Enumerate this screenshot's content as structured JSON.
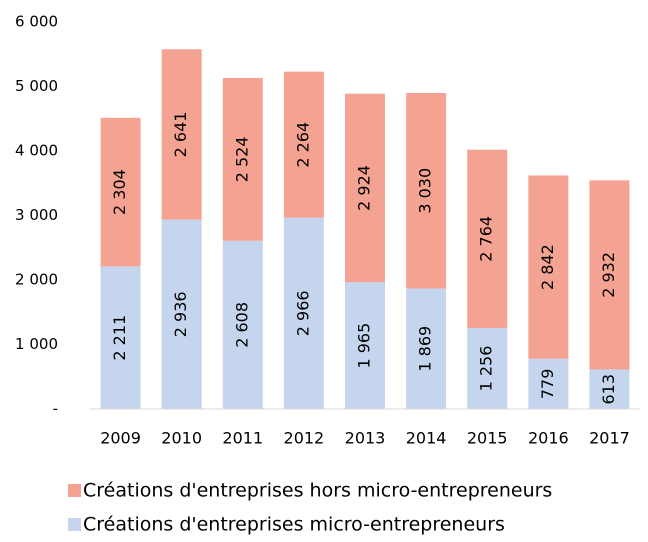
{
  "chart_data": {
    "type": "stacked_bar",
    "categories": [
      "2009",
      "2010",
      "2011",
      "2012",
      "2013",
      "2014",
      "2015",
      "2016",
      "2017"
    ],
    "series": [
      {
        "name": "Créations d'entreprises micro-entrepreneurs",
        "color": "#c5d5ee",
        "values": [
          2211,
          2936,
          2608,
          2966,
          1965,
          1869,
          1256,
          779,
          613
        ],
        "value_labels": [
          "2 211",
          "2 936",
          "2 608",
          "2 966",
          "1 965",
          "1 869",
          "1 256",
          "779",
          "613"
        ]
      },
      {
        "name": "Créations d'entreprises hors micro-entrepreneurs",
        "color": "#f4a392",
        "values": [
          2304,
          2641,
          2524,
          2264,
          2924,
          3030,
          2764,
          2842,
          2932
        ],
        "value_labels": [
          "2 304",
          "2 641",
          "2 524",
          "2 264",
          "2 924",
          "3 030",
          "2 764",
          "2 842",
          "2 932"
        ]
      }
    ],
    "ylim": [
      0,
      6000
    ],
    "yticks": [
      {
        "value": 0,
        "label": "-"
      },
      {
        "value": 1000,
        "label": "1 000"
      },
      {
        "value": 2000,
        "label": "2 000"
      },
      {
        "value": 3000,
        "label": "3 000"
      },
      {
        "value": 4000,
        "label": "4 000"
      },
      {
        "value": 5000,
        "label": "5 000"
      },
      {
        "value": 6000,
        "label": "6 000"
      }
    ],
    "grid": false
  }
}
